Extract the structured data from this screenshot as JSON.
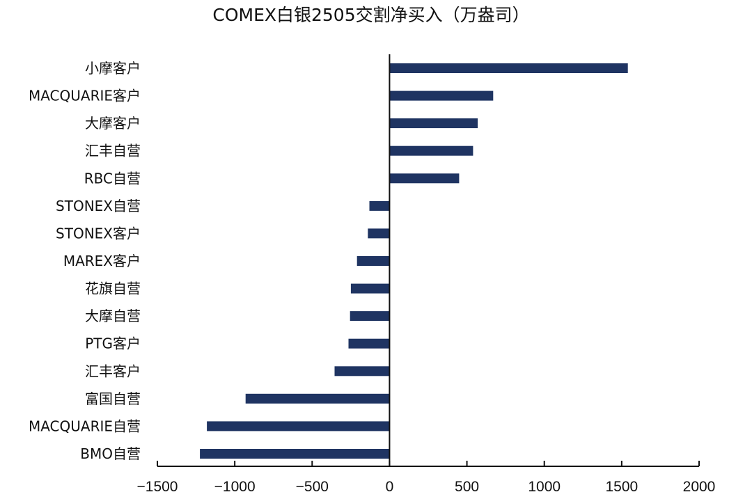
{
  "chart_data": {
    "type": "bar",
    "orientation": "horizontal",
    "title": "COMEX白银2505交割净买入（万盎司）",
    "xlabel": "",
    "ylabel": "",
    "xlim": [
      -1500,
      2000
    ],
    "xticks": [
      -1500,
      -1000,
      -500,
      0,
      500,
      1000,
      1500,
      2000
    ],
    "xtick_labels": [
      "−1500",
      "−1000",
      "−500",
      "0",
      "500",
      "1000",
      "1500",
      "2000"
    ],
    "categories": [
      "小摩客户",
      "MACQUARIE客户",
      "大摩客户",
      "汇丰自营",
      "RBC自营",
      "STONEX自营",
      "STONEX客户",
      "MAREX客户",
      "花旗自营",
      "大摩自营",
      "PTG客户",
      "汇丰客户",
      "富国自营",
      "MACQUARIE自营",
      "BMO自营"
    ],
    "values": [
      1540,
      670,
      570,
      540,
      450,
      -130,
      -140,
      -210,
      -250,
      -255,
      -265,
      -355,
      -930,
      -1180,
      -1225
    ],
    "bar_color": "#1f3462",
    "grid": false,
    "legend": "none"
  }
}
